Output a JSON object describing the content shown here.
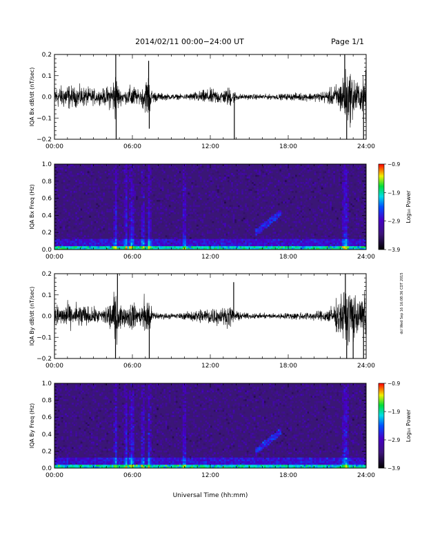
{
  "header": {
    "title": "2014/02/11  00:00−24:00 UT",
    "page": "Page 1/1"
  },
  "footer": {
    "xlabel": "Universal Time (hh:mm)"
  },
  "side_stamp": "dcl Wed Sep 16 16:08:36 CDT 2015",
  "colors": {
    "trace": "#000000",
    "spec_bg": "#3a1676"
  },
  "colorbar": {
    "label": "Log₁₀ Power",
    "ticks": [
      "−0.9",
      "−1.9",
      "−2.9",
      "−3.9"
    ],
    "tick_values": [
      -0.9,
      -1.9,
      -2.9,
      -3.9
    ],
    "range": [
      -3.9,
      -0.9
    ]
  },
  "chart_data": [
    {
      "type": "line",
      "ylabel": "IQA Bx dB/dt (nT/sec)",
      "xlim": [
        0,
        24
      ],
      "ylim": [
        -0.2,
        0.2
      ],
      "xticks": [
        0,
        6,
        12,
        18,
        24
      ],
      "xticklabels": [
        "00:00",
        "06:00",
        "12:00",
        "18:00",
        "24:00"
      ],
      "yticks": [
        -0.2,
        -0.1,
        0.0,
        0.1,
        0.2
      ],
      "yticklabels": [
        "−0.2",
        "−0.1",
        "0.0",
        "0.1",
        "0.2"
      ],
      "envelope": {
        "x": [
          0,
          0.5,
          1,
          1.5,
          2,
          2.5,
          3,
          3.5,
          4,
          4.5,
          4.7,
          5,
          5.5,
          6,
          6.5,
          7,
          7.2,
          7.5,
          8,
          9,
          10,
          11,
          12,
          13,
          13.5,
          14,
          14.5,
          15,
          16,
          17,
          18,
          19,
          20,
          21,
          21.5,
          22,
          22.3,
          22.6,
          23,
          23.5,
          24
        ],
        "y": [
          0.09,
          0.08,
          0.1,
          0.07,
          0.08,
          0.07,
          0.06,
          0.05,
          0.07,
          0.12,
          0.2,
          0.06,
          0.05,
          0.1,
          0.04,
          0.12,
          0.18,
          0.05,
          0.03,
          0.02,
          0.02,
          0.04,
          0.06,
          0.05,
          0.08,
          0.03,
          0.02,
          0.02,
          0.02,
          0.02,
          0.025,
          0.03,
          0.03,
          0.05,
          0.08,
          0.12,
          0.2,
          0.2,
          0.18,
          0.09,
          0.2
        ]
      },
      "spikes": [
        {
          "x": 4.72,
          "y": 0.2
        },
        {
          "x": 4.75,
          "y": -0.2
        },
        {
          "x": 7.25,
          "y": 0.17
        },
        {
          "x": 7.3,
          "y": -0.15
        },
        {
          "x": 13.85,
          "y": -0.2
        },
        {
          "x": 22.35,
          "y": 0.2
        },
        {
          "x": 22.5,
          "y": -0.2
        },
        {
          "x": 23.8,
          "y": -0.2
        }
      ]
    },
    {
      "type": "heatmap",
      "ylabel": "IQA Bx Freq (Hz)",
      "xlim": [
        0,
        24
      ],
      "ylim": [
        0,
        1
      ],
      "xticks": [
        0,
        6,
        12,
        18,
        24
      ],
      "xticklabels": [
        "00:00",
        "06:00",
        "12:00",
        "18:00",
        "24:00"
      ],
      "yticks": [
        0,
        0.2,
        0.4,
        0.6,
        0.8,
        1.0
      ],
      "yticklabels": [
        "0.0",
        "0.2",
        "0.4",
        "0.6",
        "0.8",
        "1.0"
      ],
      "bright_columns": [
        4.7,
        5.5,
        5.9,
        6.0,
        6.8,
        7.3,
        10.0,
        22.3,
        22.5
      ],
      "low_band_max_hz": 0.05
    },
    {
      "type": "line",
      "ylabel": "IQA By dB/dt (nT/sec)",
      "xlim": [
        0,
        24
      ],
      "ylim": [
        -0.2,
        0.2
      ],
      "xticks": [
        0,
        6,
        12,
        18,
        24
      ],
      "xticklabels": [
        "00:00",
        "06:00",
        "12:00",
        "18:00",
        "24:00"
      ],
      "yticks": [
        -0.2,
        -0.1,
        0.0,
        0.1,
        0.2
      ],
      "yticklabels": [
        "−0.2",
        "−0.1",
        "0.0",
        "0.1",
        "0.2"
      ],
      "envelope": {
        "x": [
          0,
          0.5,
          1,
          1.5,
          2,
          2.5,
          3,
          3.5,
          4,
          4.5,
          4.7,
          5,
          5.5,
          6,
          6.5,
          7,
          7.2,
          7.5,
          8,
          9,
          10,
          11,
          12,
          13,
          13.5,
          14,
          14.5,
          15,
          16,
          17,
          18,
          19,
          20,
          21,
          21.5,
          22,
          22.3,
          22.6,
          23,
          23.5,
          24
        ],
        "y": [
          0.1,
          0.08,
          0.09,
          0.08,
          0.1,
          0.07,
          0.06,
          0.05,
          0.08,
          0.14,
          0.2,
          0.1,
          0.06,
          0.12,
          0.05,
          0.15,
          0.2,
          0.05,
          0.025,
          0.02,
          0.025,
          0.05,
          0.07,
          0.06,
          0.08,
          0.035,
          0.025,
          0.02,
          0.02,
          0.02,
          0.025,
          0.03,
          0.03,
          0.05,
          0.09,
          0.14,
          0.2,
          0.2,
          0.2,
          0.1,
          0.2
        ]
      },
      "spikes": [
        {
          "x": 4.7,
          "y": -0.2
        },
        {
          "x": 4.85,
          "y": 0.2
        },
        {
          "x": 7.3,
          "y": -0.2
        },
        {
          "x": 13.8,
          "y": 0.16
        },
        {
          "x": 22.4,
          "y": 0.2
        },
        {
          "x": 22.5,
          "y": -0.2
        },
        {
          "x": 23.0,
          "y": -0.2
        },
        {
          "x": 23.8,
          "y": -0.2
        }
      ]
    },
    {
      "type": "heatmap",
      "ylabel": "IQA By Freq (Hz)",
      "xlim": [
        0,
        24
      ],
      "ylim": [
        0,
        1
      ],
      "xticks": [
        0,
        6,
        12,
        18,
        24
      ],
      "xticklabels": [
        "00:00",
        "06:00",
        "12:00",
        "18:00",
        "24:00"
      ],
      "yticks": [
        0,
        0.2,
        0.4,
        0.6,
        0.8,
        1.0
      ],
      "yticklabels": [
        "0.0",
        "0.2",
        "0.4",
        "0.6",
        "0.8",
        "1.0"
      ],
      "bright_columns": [
        4.7,
        5.5,
        5.9,
        6.0,
        6.8,
        7.3,
        10.0,
        22.3,
        22.5
      ],
      "low_band_max_hz": 0.05
    }
  ]
}
